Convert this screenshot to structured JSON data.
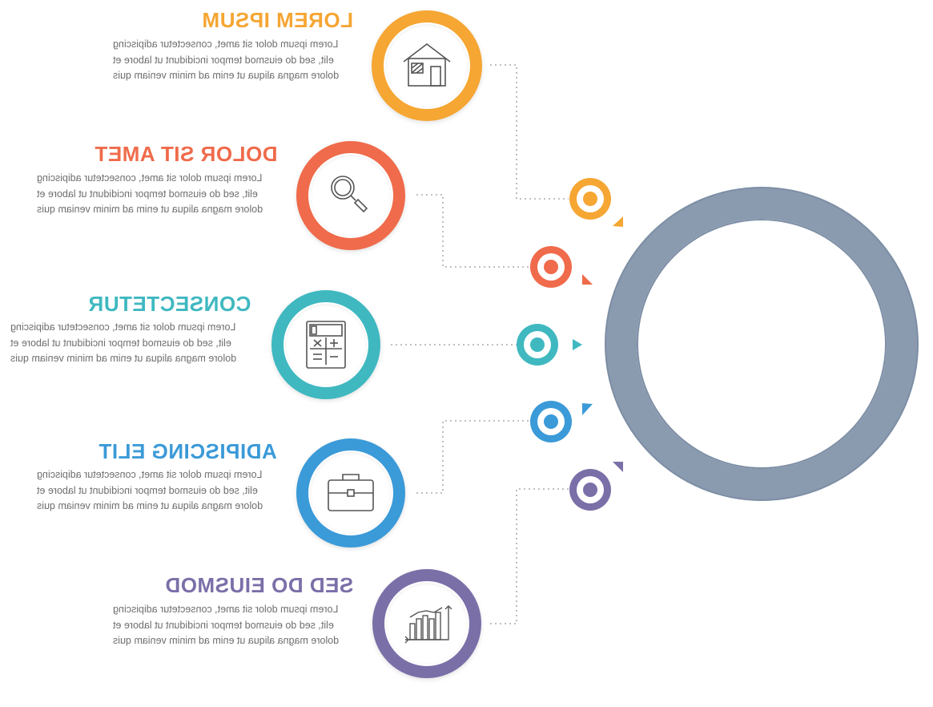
{
  "colors": {
    "orange": "#f5a633",
    "red": "#ef6b4b",
    "teal": "#3fb8c0",
    "blue": "#3b9ad8",
    "purple": "#7b6fa8",
    "hub": "#8a9bb0"
  },
  "steps": [
    {
      "title": "LOREM IPSUM",
      "text": "Lorem ipsum dolor sit amet, consectetur adipiscing elit, sed do eiusmod tempor incididunt ut labore et dolore magna aliqua ut enim ad minim veniam quis",
      "icon": "house-icon",
      "color": "#f5a633"
    },
    {
      "title": "DOLOR SIT AMET",
      "text": "Lorem ipsum dolor sit amet, consectetur adipiscing elit, sed do eiusmod tempor incididunt ut labore et dolore magna aliqua ut enim ad minim veniam quis",
      "icon": "magnifier-icon",
      "color": "#ef6b4b"
    },
    {
      "title": "CONSECTETUR",
      "text": "Lorem ipsum dolor sit amet, consectetur adipiscing elit, sed do eiusmod tempor incididunt ut labore et dolore magna aliqua ut enim ad minim veniam quis",
      "icon": "calculator-icon",
      "color": "#3fb8c0"
    },
    {
      "title": "ADIPISCING ELIT",
      "text": "Lorem ipsum dolor sit amet, consectetur adipiscing elit, sed do eiusmod tempor incididunt ut labore et dolore magna aliqua ut enim ad minim veniam quis",
      "icon": "briefcase-icon",
      "color": "#3b9ad8"
    },
    {
      "title": "SED DO EIUSMOD",
      "text": "Lorem ipsum dolor sit amet, consectetur adipiscing elit, sed do eiusmod tempor incididunt ut labore et dolore magna aliqua ut enim ad minim veniam quis",
      "icon": "bar-chart-icon",
      "color": "#7b6fa8"
    }
  ]
}
